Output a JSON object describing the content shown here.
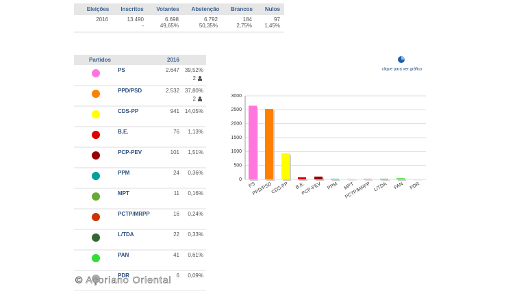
{
  "summary": {
    "headers": [
      "Eleições",
      "Inscritos",
      "Votantes",
      "Abstenção",
      "Brancos",
      "Nulos"
    ],
    "rows": [
      [
        "2016",
        "13.490",
        "6.698",
        "6.792",
        "184",
        "97"
      ],
      [
        null,
        "-",
        "49,65%",
        "50,35%",
        "2,75%",
        "1,45%"
      ]
    ]
  },
  "parties": {
    "headers": [
      "Partidos",
      "2016"
    ],
    "rows": [
      {
        "name": "PS",
        "votes": "2.647",
        "pct": "39,52%",
        "seats": 2
      },
      {
        "name": "PPD/PSD",
        "votes": "2.532",
        "pct": "37,80%",
        "seats": 2
      },
      {
        "name": "CDS-PP",
        "votes": "941",
        "pct": "14,05%"
      },
      {
        "name": "B.E.",
        "votes": "76",
        "pct": "1,13%"
      },
      {
        "name": "PCP-PEV",
        "votes": "101",
        "pct": "1,51%"
      },
      {
        "name": "PPM",
        "votes": "24",
        "pct": "0,36%"
      },
      {
        "name": "MPT",
        "votes": "11",
        "pct": "0,16%"
      },
      {
        "name": "PCTP/MRPP",
        "votes": "16",
        "pct": "0,24%"
      },
      {
        "name": "L/TDA",
        "votes": "22",
        "pct": "0,33%"
      },
      {
        "name": "PAN",
        "votes": "41",
        "pct": "0,61%"
      },
      {
        "name": "PDR",
        "votes": "6",
        "pct": "0,09%"
      }
    ]
  },
  "chart_link": "clique para ver gráfico",
  "watermark": "© Açoriano Oriental",
  "chart_data": {
    "type": "bar",
    "categories": [
      "PS",
      "PPD/PSD",
      "CDS-PP",
      "B.E.",
      "PCP-PEV",
      "PPM",
      "MPT",
      "PCTP/MRPP",
      "L/TDA",
      "PAN",
      "PDR"
    ],
    "values": [
      2647,
      2532,
      941,
      76,
      101,
      24,
      11,
      16,
      22,
      41,
      6
    ],
    "colors": [
      "#ff77dd",
      "#ff8000",
      "#ffff00",
      "#dd0000",
      "#990000",
      "#00a0a0",
      "#66aa33",
      "#cc3300",
      "#336633",
      "#33dd33",
      "#aaaaaa"
    ],
    "ylim": [
      0,
      3000
    ],
    "yticks": [
      0,
      500,
      1000,
      1500,
      2000,
      2500,
      3000
    ],
    "grid": true
  }
}
